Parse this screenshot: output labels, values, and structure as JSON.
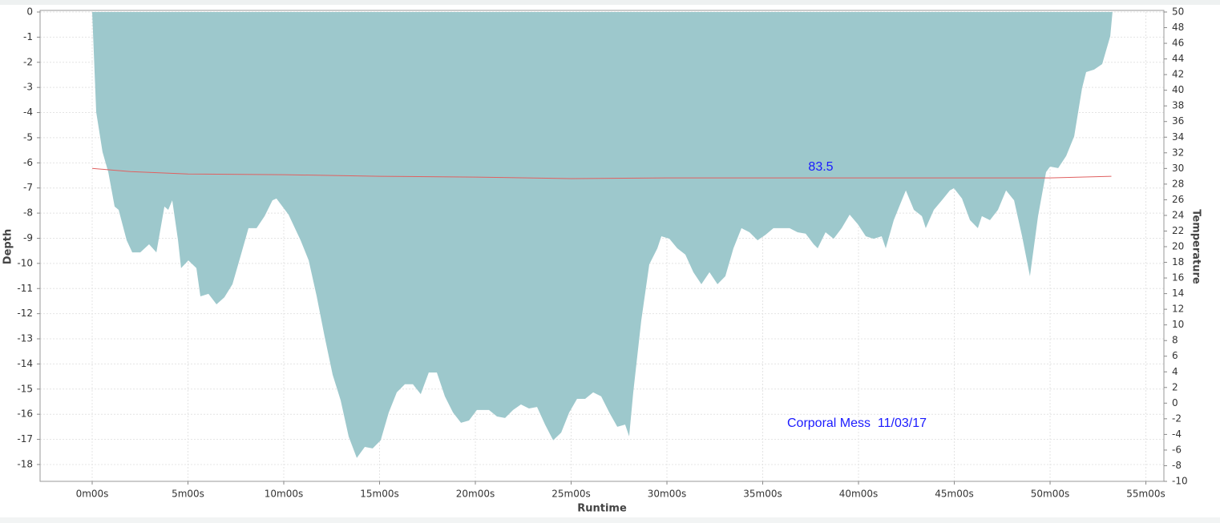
{
  "chart_data": {
    "type": "area",
    "xlabel": "Runtime",
    "ylabel": "Depth",
    "y2label": "Temperature",
    "xlim": [
      -2.72,
      55.94
    ],
    "xticks": [
      {
        "value": 0,
        "label": "0m00s"
      },
      {
        "value": 5,
        "label": "5m00s"
      },
      {
        "value": 10,
        "label": "10m00s"
      },
      {
        "value": 15,
        "label": "15m00s"
      },
      {
        "value": 20,
        "label": "20m00s"
      },
      {
        "value": 25,
        "label": "25m00s"
      },
      {
        "value": 30,
        "label": "30m00s"
      },
      {
        "value": 35,
        "label": "35m00s"
      },
      {
        "value": 40,
        "label": "40m00s"
      },
      {
        "value": 45,
        "label": "45m00s"
      },
      {
        "value": 50,
        "label": "50m00s"
      },
      {
        "value": 55,
        "label": "55m00s"
      }
    ],
    "ylim": [
      -18.67,
      0
    ],
    "yticks": [
      0,
      -1,
      -2,
      -3,
      -4,
      -5,
      -6,
      -7,
      -8,
      -9,
      -10,
      -11,
      -12,
      -13,
      -14,
      -15,
      -16,
      -17,
      -18
    ],
    "y2lim": [
      -10,
      50
    ],
    "y2ticks": [
      50,
      48,
      46,
      44,
      42,
      40,
      38,
      36,
      34,
      32,
      30,
      28,
      26,
      24,
      22,
      20,
      18,
      16,
      14,
      12,
      10,
      8,
      6,
      4,
      2,
      0,
      -2,
      -4,
      -6,
      -8,
      -10
    ],
    "grid": true,
    "series": [
      {
        "color": "#9dc8cc",
        "x": [
          0,
          0.21,
          0.54,
          0.84,
          1.17,
          1.38,
          1.8,
          2.09,
          2.51,
          2.97,
          3.35,
          3.77,
          3.97,
          4.18,
          4.48,
          4.64,
          5.02,
          5.44,
          5.65,
          6.07,
          6.49,
          6.9,
          7.32,
          7.74,
          8.16,
          8.58,
          9.0,
          9.41,
          9.62,
          10.25,
          10.88,
          11.3,
          11.72,
          12.13,
          12.55,
          12.97,
          13.39,
          13.81,
          14.23,
          14.64,
          15.06,
          15.48,
          15.9,
          16.32,
          16.74,
          17.15,
          17.57,
          17.99,
          18.41,
          18.83,
          19.25,
          19.67,
          20.08,
          20.71,
          21.13,
          21.55,
          21.97,
          22.38,
          22.8,
          23.22,
          23.64,
          24.06,
          24.48,
          24.9,
          25.31,
          25.73,
          26.15,
          26.57,
          26.99,
          27.41,
          27.82,
          28.03,
          28.24,
          28.66,
          29.08,
          29.5,
          29.71,
          30.13,
          30.54,
          30.96,
          31.38,
          31.8,
          32.22,
          32.64,
          33.05,
          33.47,
          33.89,
          34.31,
          34.73,
          35.15,
          35.56,
          35.98,
          36.4,
          36.82,
          37.24,
          37.66,
          37.87,
          38.28,
          38.7,
          39.12,
          39.54,
          39.96,
          40.38,
          40.79,
          41.21,
          41.42,
          41.84,
          42.26,
          42.47,
          42.89,
          43.31,
          43.51,
          43.93,
          44.35,
          44.77,
          44.98,
          45.4,
          45.82,
          46.23,
          46.44,
          46.86,
          47.28,
          47.7,
          48.12,
          48.54,
          48.95,
          49.37,
          49.79,
          50.0,
          50.42,
          50.84,
          51.26,
          51.67,
          51.88,
          52.3,
          52.72,
          53.14,
          53.26
        ],
        "values": [
          0,
          -3.98,
          -5.57,
          -6.37,
          -7.74,
          -7.87,
          -9.08,
          -9.56,
          -9.56,
          -9.24,
          -9.56,
          -7.74,
          -7.87,
          -7.49,
          -9.08,
          -10.19,
          -9.88,
          -10.19,
          -11.31,
          -11.21,
          -11.63,
          -11.35,
          -10.83,
          -9.72,
          -8.6,
          -8.6,
          -8.12,
          -7.49,
          -7.42,
          -8.06,
          -9.08,
          -9.88,
          -11.31,
          -12.9,
          -14.43,
          -15.45,
          -16.89,
          -17.74,
          -17.3,
          -17.36,
          -17.04,
          -15.93,
          -15.13,
          -14.81,
          -14.81,
          -15.2,
          -14.34,
          -14.34,
          -15.29,
          -15.93,
          -16.34,
          -16.25,
          -15.83,
          -15.83,
          -16.09,
          -16.15,
          -15.83,
          -15.61,
          -15.77,
          -15.71,
          -16.41,
          -17.04,
          -16.73,
          -15.93,
          -15.39,
          -15.39,
          -15.13,
          -15.29,
          -15.93,
          -16.5,
          -16.41,
          -16.88,
          -15.13,
          -12.27,
          -10.04,
          -9.4,
          -8.92,
          -9.02,
          -9.4,
          -9.65,
          -10.35,
          -10.83,
          -10.35,
          -10.83,
          -10.51,
          -9.4,
          -8.6,
          -8.76,
          -9.08,
          -8.86,
          -8.6,
          -8.6,
          -8.6,
          -8.76,
          -8.82,
          -9.24,
          -9.4,
          -8.76,
          -9.02,
          -8.6,
          -8.06,
          -8.44,
          -8.92,
          -9.02,
          -8.92,
          -9.4,
          -8.28,
          -7.49,
          -7.1,
          -7.87,
          -8.12,
          -8.6,
          -7.87,
          -7.49,
          -7.1,
          -7.01,
          -7.42,
          -8.28,
          -8.6,
          -8.12,
          -8.28,
          -7.87,
          -7.1,
          -7.49,
          -8.92,
          -10.51,
          -8.12,
          -6.37,
          -6.15,
          -6.21,
          -5.73,
          -4.94,
          -3.03,
          -2.39,
          -2.29,
          -2.07,
          -0.96,
          0
        ]
      },
      {
        "color": "#e06060",
        "axis": "y2",
        "type": "line",
        "x": [
          0,
          2,
          5,
          10,
          15,
          20,
          25,
          30,
          35,
          40,
          45,
          50,
          53.2
        ],
        "values": [
          30.0,
          29.6,
          29.3,
          29.2,
          29.0,
          28.9,
          28.7,
          28.8,
          28.8,
          28.8,
          28.8,
          28.8,
          29.0
        ]
      }
    ],
    "annotations": [
      {
        "text": "83.5"
      },
      {
        "text": "Corporal Mess  11/03/17"
      }
    ]
  }
}
